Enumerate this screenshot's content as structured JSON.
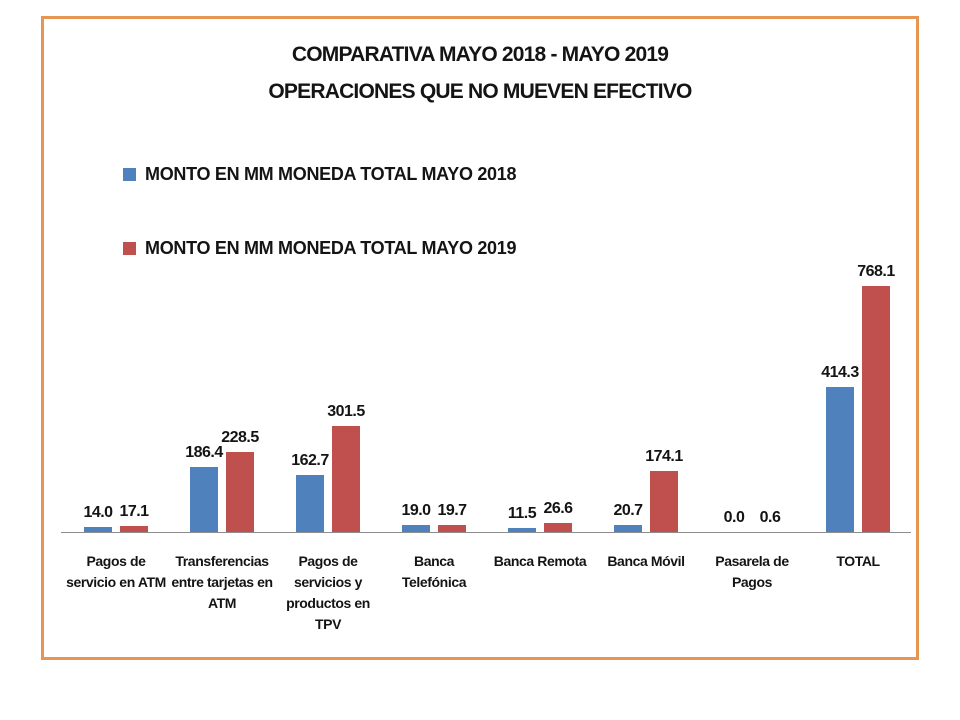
{
  "window": {
    "background": "#FFFFFF",
    "frame_border_color": "#E79552"
  },
  "title": {
    "line1": "COMPARATIVA MAYO 2018 - MAYO 2019",
    "line2": "OPERACIONES QUE NO MUEVEN EFECTIVO"
  },
  "legend": {
    "items": [
      {
        "label": "MONTO EN MM MONEDA TOTAL MAYO 2018",
        "color": "#4F81BD"
      },
      {
        "label": "MONTO EN MM MONEDA TOTAL MAYO 2019",
        "color": "#C0504D"
      }
    ]
  },
  "chart_data": {
    "type": "bar",
    "title": "COMPARATIVA MAYO 2018 - MAYO 2019",
    "subtitle": "OPERACIONES QUE NO MUEVEN EFECTIVO",
    "categories": [
      "Pagos de servicio en ATM",
      "Transferencias entre tarjetas en ATM",
      "Pagos de servicios y productos en TPV",
      "Banca Telefónica",
      "Banca Remota",
      "Banca Móvil",
      "Pasarela de Pagos",
      "TOTAL"
    ],
    "series": [
      {
        "name": "MONTO EN MM MONEDA TOTAL MAYO 2018",
        "color": "#4F81BD",
        "values": [
          14.0,
          186.4,
          162.7,
          19.0,
          11.5,
          20.7,
          0.0,
          414.3
        ]
      },
      {
        "name": "MONTO EN MM MONEDA TOTAL MAYO 2019",
        "color": "#C0504D",
        "values": [
          17.1,
          228.5,
          301.5,
          19.7,
          26.6,
          174.1,
          0.6,
          768.1
        ]
      }
    ],
    "data_labels": true,
    "value_label_decimals": 1,
    "axis_color": "#8C8C8C",
    "grid": false,
    "y_axis_visible": false,
    "legend_position": "upper-left"
  }
}
